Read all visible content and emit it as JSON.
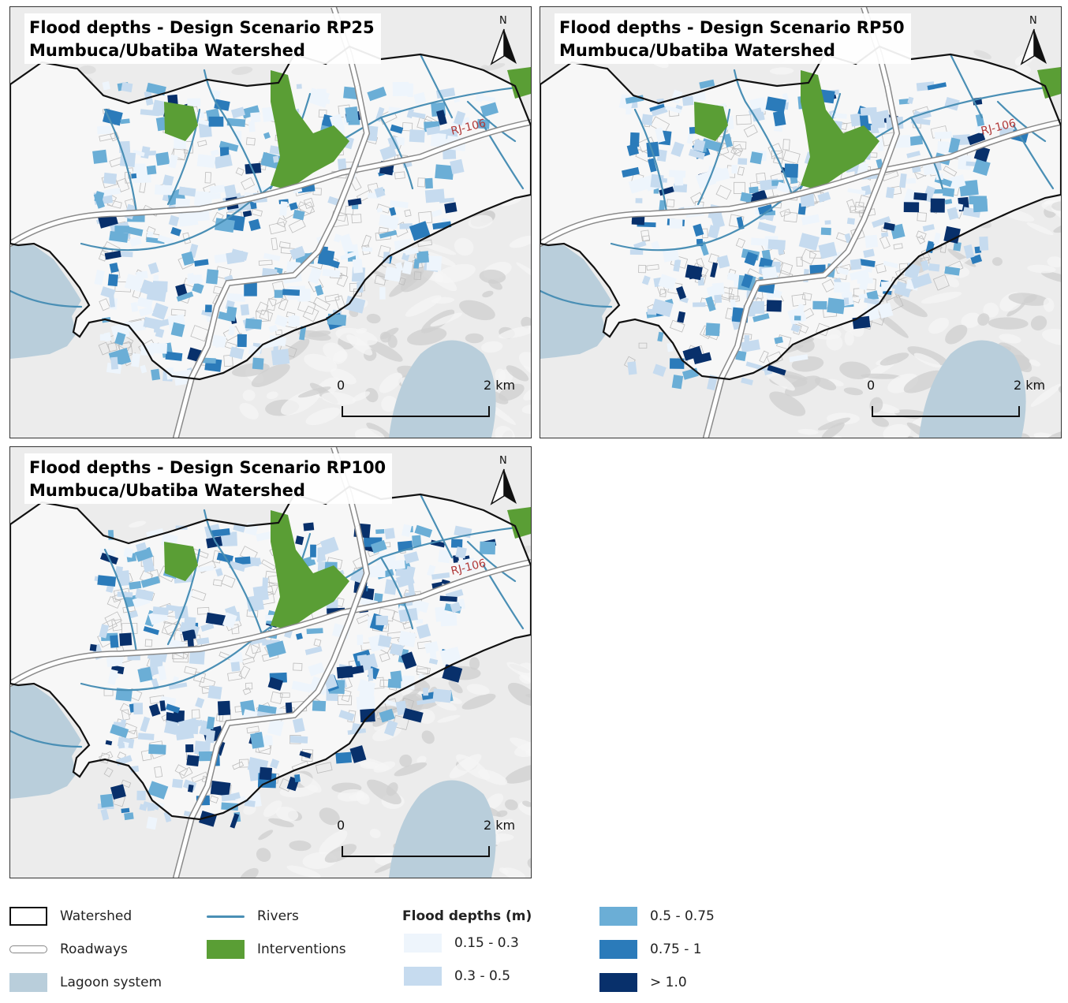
{
  "panels": [
    {
      "title_line1": "Flood depths - Design Scenario RP25",
      "title_line2": "Mumbuca/Ubatiba Watershed",
      "north_label": "N",
      "road_label": "RJ-106",
      "scale_zero": "0",
      "scale_end": "2 km"
    },
    {
      "title_line1": "Flood depths - Design Scenario RP50",
      "title_line2": "Mumbuca/Ubatiba Watershed",
      "north_label": "N",
      "road_label": "RJ-106",
      "scale_zero": "0",
      "scale_end": "2 km"
    },
    {
      "title_line1": "Flood depths - Design Scenario RP100",
      "title_line2": "Mumbuca/Ubatiba Watershed",
      "north_label": "N",
      "road_label": "RJ-106",
      "scale_zero": "0",
      "scale_end": "2 km"
    }
  ],
  "legend": {
    "watershed": "Watershed",
    "roadways": "Roadways",
    "lagoon": "Lagoon system",
    "rivers": "Rivers",
    "interventions": "Interventions",
    "flood_heading": "Flood depths (m)",
    "classes": [
      "0.15 - 0.3",
      "0.3 - 0.5",
      "0.5 - 0.75",
      "0.75 - 1",
      "> 1.0"
    ]
  },
  "colors": {
    "watershed_outline": "#111111",
    "lagoon": "#b9cedb",
    "rivers": "#4a8fb5",
    "interventions": "#5a9e35",
    "road_fill": "#ffffff",
    "road_casing": "#8a8a8a",
    "relief": "#d6d6d6",
    "flood": [
      "#eef5fc",
      "#c6dbef",
      "#6baed6",
      "#2b7bba",
      "#08306b"
    ]
  }
}
